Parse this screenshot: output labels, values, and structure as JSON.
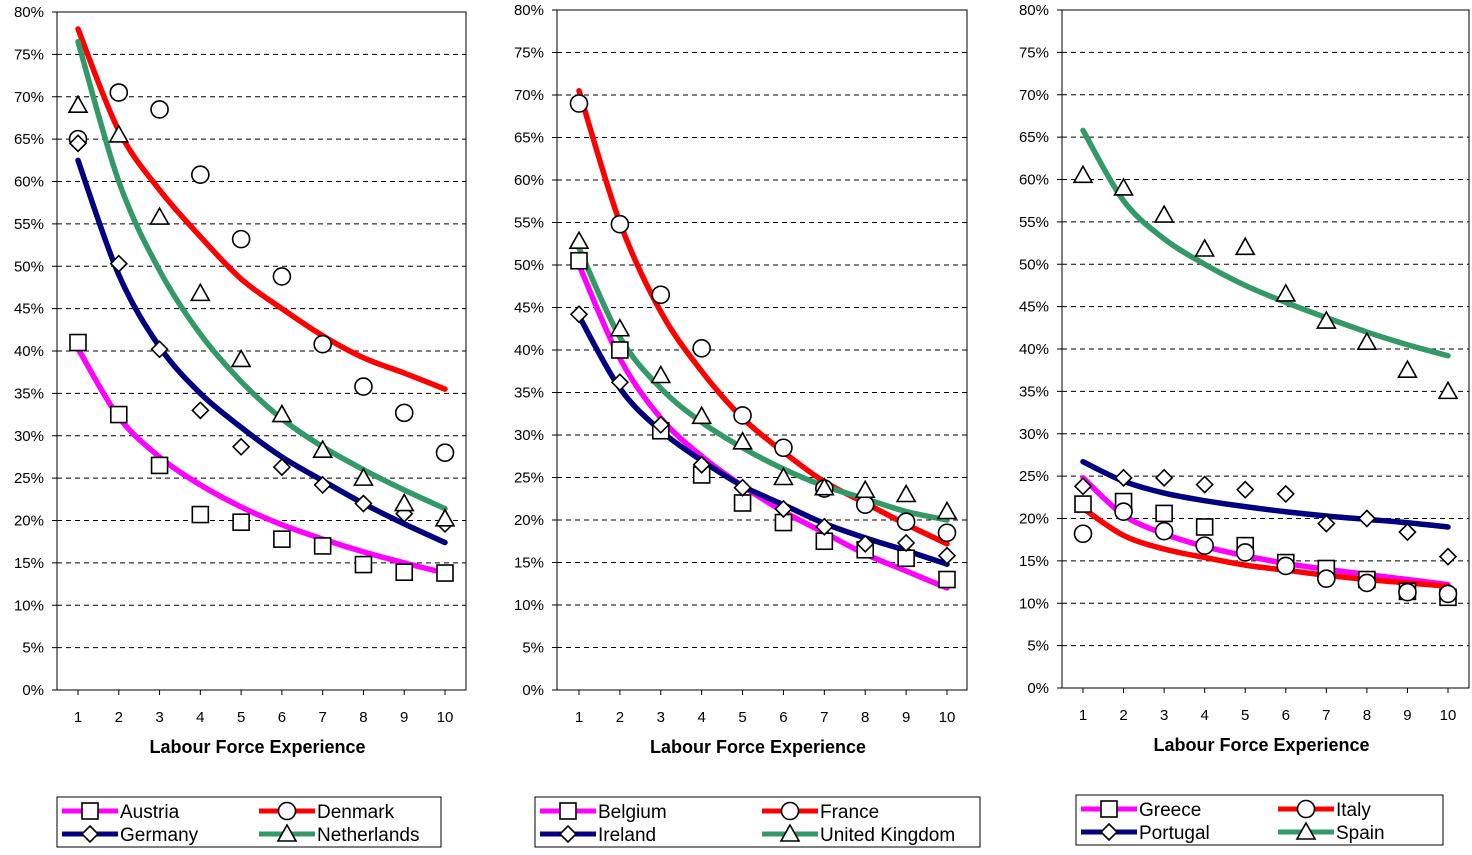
{
  "chart_data": [
    {
      "type": "scatter",
      "xlabel": "Labour Force Experience",
      "ylabel": "",
      "ylim": [
        0,
        80
      ],
      "xlim": [
        1,
        10
      ],
      "grid": true,
      "y_tick_labels": [
        "0%",
        "5%",
        "10%",
        "15%",
        "20%",
        "25%",
        "30%",
        "35%",
        "40%",
        "45%",
        "50%",
        "55%",
        "60%",
        "65%",
        "70%",
        "75%",
        "80%"
      ],
      "x_tick_labels": [
        "1",
        "2",
        "3",
        "4",
        "5",
        "6",
        "7",
        "8",
        "9",
        "10"
      ],
      "legend_position": "bottom",
      "series": [
        {
          "name": "Austria",
          "marker": "square",
          "color": "#ff00ff",
          "points": [
            41,
            32.5,
            26.5,
            20.7,
            19.8,
            17.8,
            17,
            14.8,
            13.9,
            13.8
          ],
          "fit": [
            40.3,
            32.2,
            27.5,
            24.2,
            21.6,
            19.5,
            17.8,
            16.3,
            15,
            13.8
          ]
        },
        {
          "name": "Denmark",
          "marker": "circle",
          "color": "#ff0000",
          "points": [
            65,
            70.5,
            68.5,
            60.8,
            53.2,
            48.8,
            40.8,
            35.8,
            32.7,
            28
          ]
        },
        {
          "name": "Germany",
          "marker": "diamond",
          "color": "#000080",
          "points": [
            64.5,
            50.3,
            40.2,
            33,
            28.7,
            26.3,
            24.2,
            22,
            20.8,
            19.6
          ]
        },
        {
          "name": "Netherlands",
          "marker": "triangle",
          "color": "#339966",
          "points": [
            69,
            65.5,
            55.8,
            46.8,
            39,
            32.5,
            28.3,
            25,
            22,
            20.2
          ]
        }
      ],
      "fits": {
        "Austria": [
          40.3,
          32.2,
          27.5,
          24.2,
          21.6,
          19.5,
          17.8,
          16.3,
          15,
          13.8
        ],
        "Denmark": [
          78,
          66,
          59,
          53.5,
          48.5,
          45,
          41.8,
          39.2,
          37.4,
          35.5
        ],
        "Germany": [
          62.5,
          49,
          40.5,
          35,
          31,
          27.5,
          24.7,
          22,
          19.6,
          17.4
        ],
        "Netherlands": [
          76.5,
          60,
          49.5,
          42,
          36.4,
          32,
          28.7,
          26,
          23.6,
          21.4
        ]
      }
    },
    {
      "type": "scatter",
      "xlabel": "Labour Force Experience",
      "ylabel": "",
      "ylim": [
        0,
        80
      ],
      "xlim": [
        1,
        10
      ],
      "grid": true,
      "y_tick_labels": [
        "0%",
        "5%",
        "10%",
        "15%",
        "20%",
        "25%",
        "30%",
        "35%",
        "40%",
        "45%",
        "50%",
        "55%",
        "60%",
        "65%",
        "70%",
        "75%",
        "80%"
      ],
      "x_tick_labels": [
        "1",
        "2",
        "3",
        "4",
        "5",
        "6",
        "7",
        "8",
        "9",
        "10"
      ],
      "legend_position": "bottom",
      "series": [
        {
          "name": "Belgium",
          "marker": "square",
          "color": "#ff00ff",
          "points": [
            50.5,
            40,
            30.5,
            25.3,
            22,
            19.7,
            17.5,
            16.5,
            15.5,
            13
          ]
        },
        {
          "name": "France",
          "marker": "circle",
          "color": "#ff0000",
          "points": [
            69,
            54.8,
            46.5,
            40.2,
            32.3,
            28.5,
            23.7,
            21.8,
            19.8,
            18.5
          ]
        },
        {
          "name": "Ireland",
          "marker": "diamond",
          "color": "#000080",
          "points": [
            44.2,
            36.2,
            31.2,
            26.5,
            23.8,
            21.3,
            19.2,
            17.2,
            17.3,
            15.8
          ]
        },
        {
          "name": "United Kingdom",
          "marker": "triangle",
          "color": "#339966",
          "points": [
            52.8,
            42.5,
            37,
            32.2,
            29.2,
            25,
            23.8,
            23.5,
            23,
            21
          ]
        }
      ],
      "fits": {
        "Belgium": [
          50,
          39,
          32,
          27.5,
          24,
          21,
          18.5,
          16,
          14,
          12
        ],
        "France": [
          70.5,
          55,
          44.5,
          37.5,
          32,
          28,
          24.5,
          22,
          19.5,
          17.2
        ],
        "Ireland": [
          44,
          35.5,
          30.5,
          27,
          24,
          21.8,
          19.6,
          17.9,
          16.4,
          14.8
        ],
        "United Kingdom": [
          52,
          41.5,
          35.5,
          31.5,
          28.5,
          26,
          24,
          22.5,
          21,
          20
        ]
      }
    },
    {
      "type": "scatter",
      "xlabel": "Labour Force Experience",
      "ylabel": "",
      "ylim": [
        0,
        80
      ],
      "xlim": [
        1,
        10
      ],
      "grid": true,
      "y_tick_labels": [
        "0%",
        "5%",
        "10%",
        "15%",
        "20%",
        "25%",
        "30%",
        "35%",
        "40%",
        "45%",
        "50%",
        "55%",
        "60%",
        "65%",
        "70%",
        "75%",
        "80%"
      ],
      "x_tick_labels": [
        "1",
        "2",
        "3",
        "4",
        "5",
        "6",
        "7",
        "8",
        "9",
        "10"
      ],
      "legend_position": "bottom",
      "series": [
        {
          "name": "Greece",
          "marker": "square",
          "color": "#ff00ff",
          "points": [
            21.7,
            22,
            20.6,
            19,
            16.8,
            14.8,
            14.1,
            12.8,
            11.4,
            10.7
          ]
        },
        {
          "name": "Italy",
          "marker": "circle",
          "color": "#ff0000",
          "points": [
            18.2,
            20.8,
            18.5,
            16.8,
            16,
            14.4,
            12.9,
            12.4,
            11.3,
            11.1
          ]
        },
        {
          "name": "Portugal",
          "marker": "diamond",
          "color": "#000080",
          "points": [
            23.8,
            24.8,
            24.8,
            24,
            23.4,
            22.9,
            19.4,
            20,
            18.4,
            15.5
          ]
        },
        {
          "name": "Spain",
          "marker": "triangle",
          "color": "#339966",
          "points": [
            60.5,
            59,
            55.8,
            51.8,
            52,
            46.5,
            43.3,
            40.8,
            37.5,
            35
          ]
        }
      ],
      "fits": {
        "Greece": [
          24.8,
          20.4,
          18.2,
          16.7,
          15.6,
          14.7,
          14,
          13.4,
          12.8,
          12.2
        ],
        "Italy": [
          21.2,
          18,
          16.4,
          15.4,
          14.5,
          13.9,
          13.3,
          12.8,
          12.4,
          12
        ],
        "Portugal": [
          26.7,
          24.4,
          23,
          22.1,
          21.4,
          20.8,
          20.3,
          19.9,
          19.5,
          19
        ],
        "Spain": [
          65.8,
          57.5,
          53,
          50,
          47.5,
          45.5,
          43.7,
          42,
          40.5,
          39.2
        ]
      }
    }
  ]
}
